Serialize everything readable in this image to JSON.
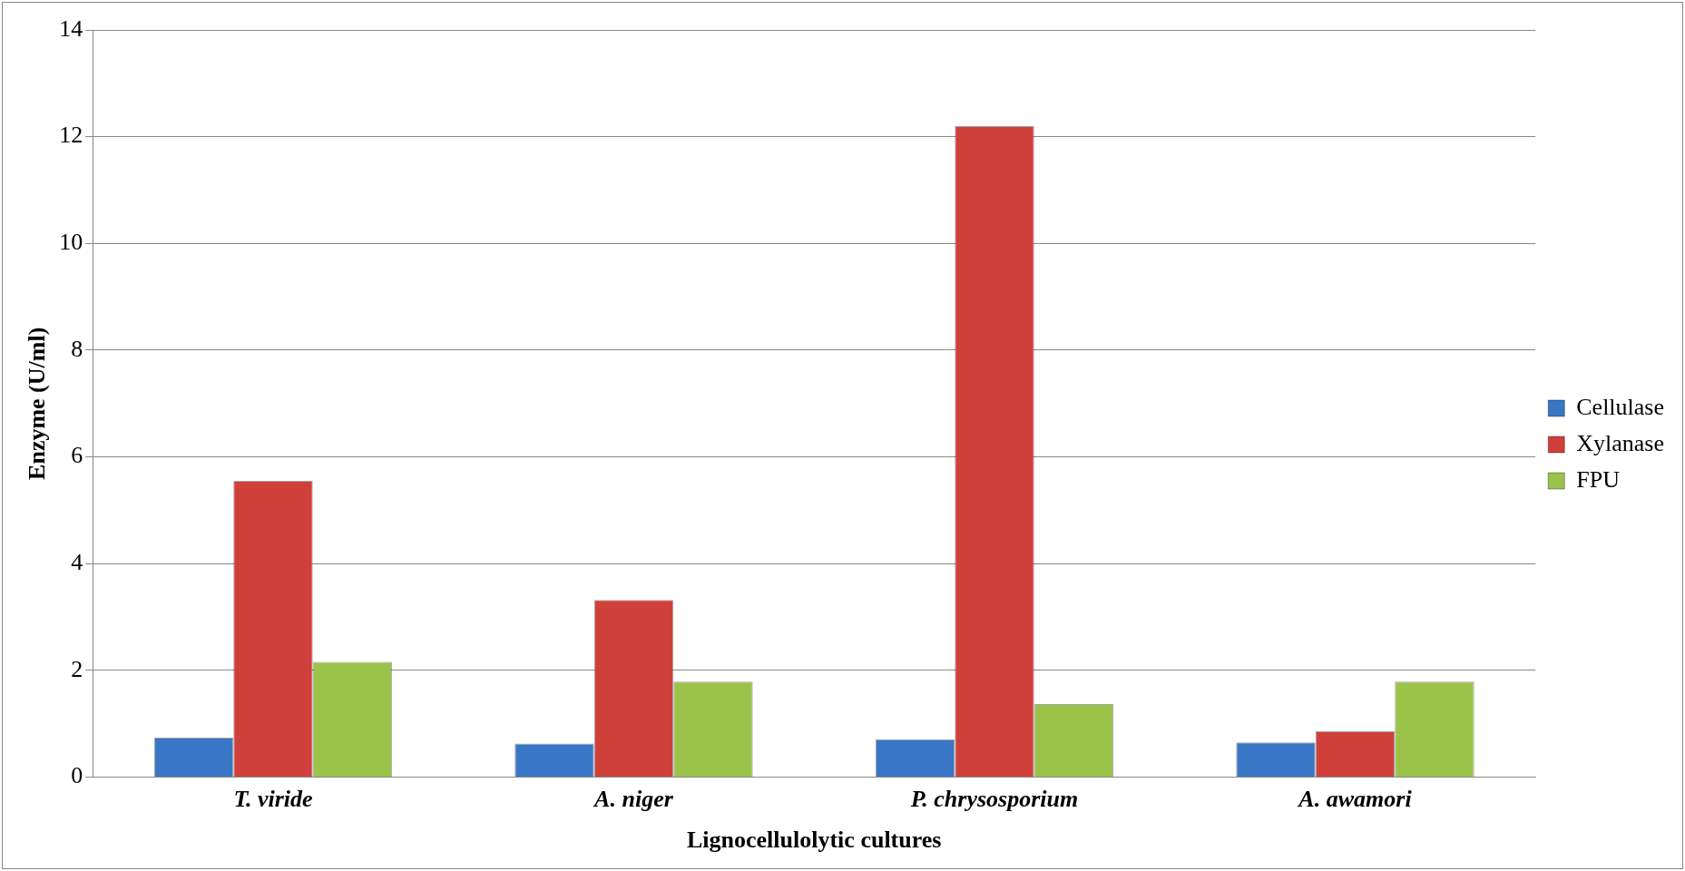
{
  "chart_data": {
    "type": "bar",
    "xlabel": "Lignocellulolytic cultures",
    "ylabel": "Enzyme (U/ml)",
    "categories": [
      "T. viride",
      "A. niger",
      "P. chrysosporium",
      "A. awamori"
    ],
    "series": [
      {
        "name": "Cellulase",
        "color": "#3a76c6",
        "values": [
          0.74,
          0.63,
          0.71,
          0.65
        ]
      },
      {
        "name": "Xylanase",
        "color": "#d0403b",
        "values": [
          5.55,
          3.32,
          12.2,
          0.86
        ]
      },
      {
        "name": "FPU",
        "color": "#9bc34a",
        "values": [
          2.16,
          1.79,
          1.37,
          1.79
        ]
      }
    ],
    "ylim": [
      0,
      14
    ],
    "yticks": [
      0,
      2,
      4,
      6,
      8,
      10,
      12,
      14
    ],
    "grid": "y",
    "legend": "right"
  }
}
